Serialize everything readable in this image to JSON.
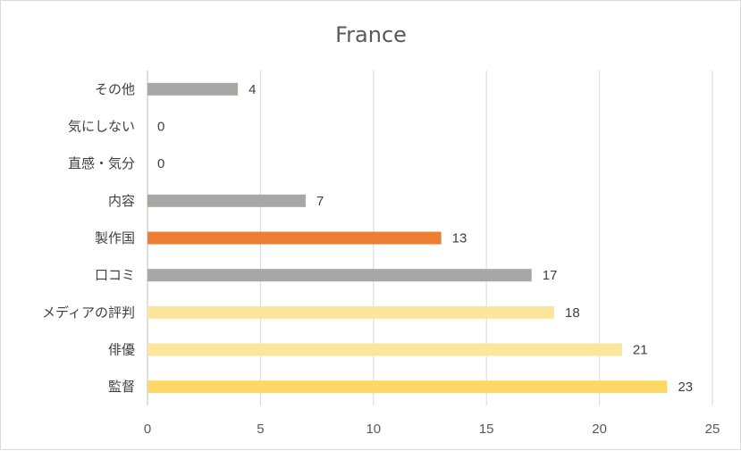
{
  "chart_data": {
    "type": "bar",
    "orientation": "horizontal",
    "title": "France",
    "categories": [
      "その他",
      "気にしない",
      "直感・気分",
      "内容",
      "製作国",
      "口コミ",
      "メディアの評判",
      "俳優",
      "監督"
    ],
    "values": [
      4,
      0,
      0,
      7,
      13,
      17,
      18,
      21,
      23
    ],
    "bar_colors": [
      "#a9a6a6",
      "#a9a6a6",
      "#a9a6a6",
      "#a9a6a6",
      "#ed7d31",
      "#a9a6a6",
      "#fce69b",
      "#fce69b",
      "#fcd966"
    ],
    "xlim": [
      0,
      25
    ],
    "xticks": [
      0,
      5,
      10,
      15,
      20,
      25
    ],
    "xlabel": "",
    "ylabel": "",
    "grid": "vertical",
    "legend": "none",
    "data_labels": true
  }
}
